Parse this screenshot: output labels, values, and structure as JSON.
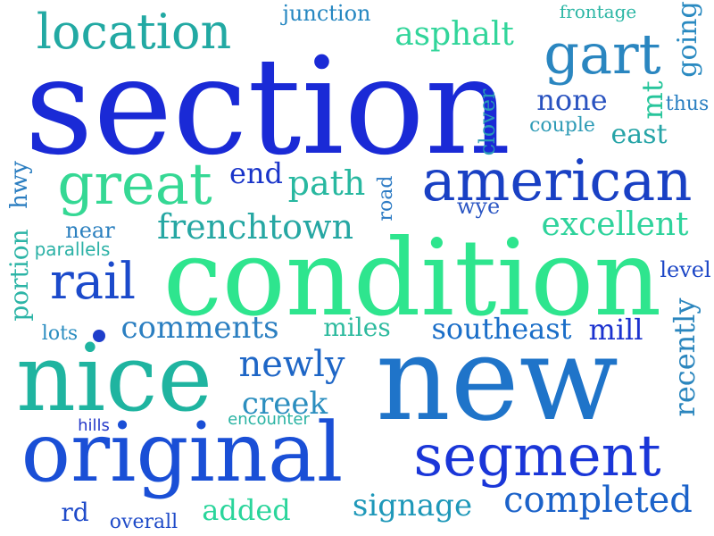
{
  "colors": {
    "blue": "#1a2ad6",
    "mid_blue": "#1b5ec8",
    "steel_blue": "#2a7ec4",
    "teal": "#20a7a0",
    "aqua": "#22c3a4",
    "green": "#2ee58e"
  },
  "words": [
    {
      "text": "section",
      "color": "#1a2ad6"
    },
    {
      "text": "condition",
      "color": "#2ee58e"
    },
    {
      "text": "new",
      "color": "#1f74c9"
    },
    {
      "text": "nice",
      "color": "#1fb4a0"
    },
    {
      "text": "original",
      "color": "#1a4fd6"
    },
    {
      "text": "american",
      "color": "#1940c4"
    },
    {
      "text": "segment",
      "color": "#1a36d8"
    },
    {
      "text": "great",
      "color": "#35d894"
    },
    {
      "text": "location",
      "color": "#22a9a3"
    },
    {
      "text": "gart",
      "color": "#2a86c0"
    },
    {
      "text": "rail",
      "color": "#1b4acb"
    },
    {
      "text": "frenchtown",
      "color": "#26a7a3"
    },
    {
      "text": "completed",
      "color": "#1b62c9"
    },
    {
      "text": "excellent",
      "color": "#2fd39c"
    },
    {
      "text": "asphalt",
      "color": "#31d59a"
    },
    {
      "text": "newly",
      "color": "#1e66c6"
    },
    {
      "text": "comments",
      "color": "#2b7fc1"
    },
    {
      "text": "path",
      "color": "#28b8a0"
    },
    {
      "text": "southeast",
      "color": "#1a6ec8"
    },
    {
      "text": "creek",
      "color": "#2b8ebf"
    },
    {
      "text": "signage",
      "color": "#1e98b9"
    },
    {
      "text": "added",
      "color": "#2ad59b"
    },
    {
      "text": "none",
      "color": "#2a53c0"
    },
    {
      "text": "east",
      "color": "#26a4a7"
    },
    {
      "text": "mill",
      "color": "#1c32cf"
    },
    {
      "text": "end",
      "color": "#1934c9"
    },
    {
      "text": "junction",
      "color": "#2687c1"
    },
    {
      "text": "going",
      "color": "#2a8ac1"
    },
    {
      "text": "mt",
      "color": "#27c59b"
    },
    {
      "text": "recently",
      "color": "#2b86be"
    },
    {
      "text": "portion",
      "color": "#2cb4a6"
    },
    {
      "text": "hwy",
      "color": "#2a7dc0"
    },
    {
      "text": "miles",
      "color": "#2dba9e"
    },
    {
      "text": "rd",
      "color": "#1e4ac9"
    },
    {
      "text": "near",
      "color": "#2c80bf"
    },
    {
      "text": "wye",
      "color": "#2b56c3"
    },
    {
      "text": "level",
      "color": "#1c46c6"
    },
    {
      "text": "lots",
      "color": "#2b8dc0"
    },
    {
      "text": "hills",
      "color": "#2438c8"
    },
    {
      "text": "encounter",
      "color": "#2ab3a3"
    },
    {
      "text": "overall",
      "color": "#1f4bc8"
    },
    {
      "text": "frontage",
      "color": "#2bb6a4"
    },
    {
      "text": "thus",
      "color": "#2a7fc1"
    },
    {
      "text": "couple",
      "color": "#2e9bb6"
    },
    {
      "text": "clover",
      "color": "#2a9bb6"
    },
    {
      "text": "road",
      "color": "#2d7bc4"
    },
    {
      "text": "parallels",
      "color": "#2bb1a6"
    }
  ]
}
